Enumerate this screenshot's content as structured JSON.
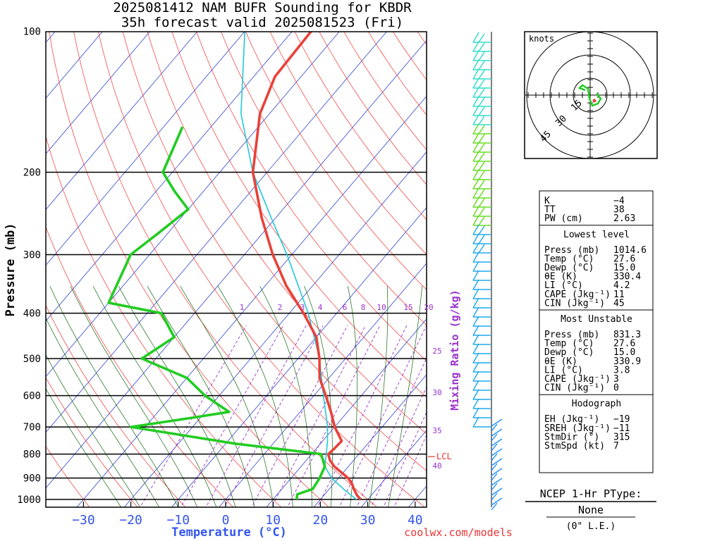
{
  "chart_data": {
    "type": "skew-t",
    "title": "2025081412 NAM BUFR Sounding for KBDR",
    "subtitle": "35h forecast valid 2025081523 (Fri)",
    "xlabel": "Temperature (°C)",
    "ylabel": "Pressure (mb)",
    "mixing_ratio_label": "Mixing Ratio (g/kg)",
    "credit": "coolwx.com/models",
    "x_ticks": [
      "−30",
      "−20",
      "−10",
      "0",
      "10",
      "20",
      "30",
      "40"
    ],
    "x_tick_values": [
      -30,
      -20,
      -10,
      0,
      10,
      20,
      30,
      40
    ],
    "pressure_ticks": [
      "100",
      "200",
      "300",
      "400",
      "500",
      "600",
      "700",
      "800",
      "900",
      "1000"
    ],
    "pressure_tick_values": [
      100,
      200,
      300,
      400,
      500,
      600,
      700,
      800,
      900,
      1000
    ],
    "mixing_ratio_labels": [
      "1",
      "2",
      "3",
      "4",
      "6",
      "8",
      "10",
      "15",
      "20",
      "25",
      "30",
      "35",
      "40"
    ],
    "lcl_label": "LCL",
    "lcl_pressure": 810,
    "temperature_profile": [
      {
        "p": 1000,
        "t": 28.5
      },
      {
        "p": 980,
        "t": 27.0
      },
      {
        "p": 950,
        "t": 25.2
      },
      {
        "p": 925,
        "t": 23.8
      },
      {
        "p": 900,
        "t": 22.0
      },
      {
        "p": 850,
        "t": 17.0
      },
      {
        "p": 825,
        "t": 15.0
      },
      {
        "p": 800,
        "t": 13.5
      },
      {
        "p": 780,
        "t": 13.8
      },
      {
        "p": 750,
        "t": 14.0
      },
      {
        "p": 700,
        "t": 10.0
      },
      {
        "p": 650,
        "t": 6.5
      },
      {
        "p": 600,
        "t": 2.5
      },
      {
        "p": 550,
        "t": -2.0
      },
      {
        "p": 500,
        "t": -5.5
      },
      {
        "p": 450,
        "t": -10.0
      },
      {
        "p": 400,
        "t": -17.0
      },
      {
        "p": 350,
        "t": -25.5
      },
      {
        "p": 300,
        "t": -34.0
      },
      {
        "p": 250,
        "t": -43.0
      },
      {
        "p": 200,
        "t": -53.0
      },
      {
        "p": 150,
        "t": -62.0
      },
      {
        "p": 125,
        "t": -65.5
      },
      {
        "p": 100,
        "t": -66.0
      }
    ],
    "dewpoint_profile": [
      {
        "p": 1000,
        "t": 15.0
      },
      {
        "p": 975,
        "t": 14.2
      },
      {
        "p": 950,
        "t": 16.5
      },
      {
        "p": 900,
        "t": 16.0
      },
      {
        "p": 850,
        "t": 15.0
      },
      {
        "p": 800,
        "t": 12.0
      },
      {
        "p": 760,
        "t": -8.0
      },
      {
        "p": 700,
        "t": -33.0
      },
      {
        "p": 670,
        "t": -22.0
      },
      {
        "p": 650,
        "t": -15.0
      },
      {
        "p": 600,
        "t": -23.0
      },
      {
        "p": 550,
        "t": -30.0
      },
      {
        "p": 500,
        "t": -43.0
      },
      {
        "p": 450,
        "t": -40.0
      },
      {
        "p": 400,
        "t": -47.0
      },
      {
        "p": 380,
        "t": -60.0
      },
      {
        "p": 300,
        "t": -64.0
      },
      {
        "p": 270,
        "t": -62.0
      },
      {
        "p": 240,
        "t": -60.0
      },
      {
        "p": 220,
        "t": -66.0
      },
      {
        "p": 200,
        "t": -72.0
      },
      {
        "p": 160,
        "t": -76.0
      }
    ],
    "parcel_profile": [
      {
        "p": 1000,
        "t": 27.6
      },
      {
        "p": 950,
        "t": 23.0
      },
      {
        "p": 900,
        "t": 18.5
      },
      {
        "p": 850,
        "t": 15.0
      },
      {
        "p": 810,
        "t": 13.5
      },
      {
        "p": 750,
        "t": 11.0
      },
      {
        "p": 700,
        "t": 8.5
      },
      {
        "p": 600,
        "t": 2.0
      },
      {
        "p": 500,
        "t": -5.5
      },
      {
        "p": 400,
        "t": -16.0
      },
      {
        "p": 300,
        "t": -31.0
      },
      {
        "p": 250,
        "t": -41.0
      },
      {
        "p": 200,
        "t": -53.0
      },
      {
        "p": 150,
        "t": -66.0
      },
      {
        "p": 100,
        "t": -80.0
      }
    ]
  },
  "hodograph": {
    "units_label": "knots",
    "ring_labels": [
      "15",
      "30",
      "45"
    ]
  },
  "indices": {
    "general": [
      {
        "label": "K",
        "value": "−4"
      },
      {
        "label": "TT",
        "value": "38"
      },
      {
        "label": "PW (cm)",
        "value": "2.63"
      }
    ],
    "lowest_level": {
      "heading": "Lowest level",
      "rows": [
        {
          "label": "Press (mb)",
          "value": "1014.6"
        },
        {
          "label": "Temp (°C)",
          "value": "27.6"
        },
        {
          "label": "Dewp (°C)",
          "value": "15.0"
        },
        {
          "label": "θE (K)",
          "value": "330.4"
        },
        {
          "label": "LI (°C)",
          "value": "4.2"
        },
        {
          "label": "CAPE (Jkg⁻¹)",
          "value": "11"
        },
        {
          "label": "CIN (Jkg⁻¹)",
          "value": "45"
        }
      ]
    },
    "most_unstable": {
      "heading": "Most Unstable",
      "rows": [
        {
          "label": "Press (mb)",
          "value": "831.3"
        },
        {
          "label": "Temp (°C)",
          "value": "27.6"
        },
        {
          "label": "Dewp (°C)",
          "value": "15.0"
        },
        {
          "label": "θE (K)",
          "value": "330.9"
        },
        {
          "label": "LI (°C)",
          "value": "3.8"
        },
        {
          "label": "CAPE (Jkg⁻¹)",
          "value": "3"
        },
        {
          "label": "CIN (Jkg⁻¹)",
          "value": "0"
        }
      ]
    },
    "hodograph_params": {
      "heading": "Hodograph",
      "rows": [
        {
          "label": "EH (Jkg⁻¹)",
          "value": "−19"
        },
        {
          "label": "SREH (Jkg⁻¹)",
          "value": "−11"
        },
        {
          "label": "StmDir (°)",
          "value": "315"
        },
        {
          "label": "StmSpd (kt)",
          "value": "7"
        }
      ]
    }
  },
  "ptype": {
    "heading": "NCEP 1-Hr PType:",
    "value": "None",
    "accum": "(0\" L.E.)"
  },
  "colors": {
    "temperature": "#e8423a",
    "dewpoint": "#22cc22",
    "parcel": "#22c8d8",
    "isotherm": "#3344cc",
    "dry_adiabat": "#ee3333",
    "moist_adiabat": "#116611",
    "mixing_ratio": "#9933cc",
    "axis_text": "#3355ee"
  }
}
